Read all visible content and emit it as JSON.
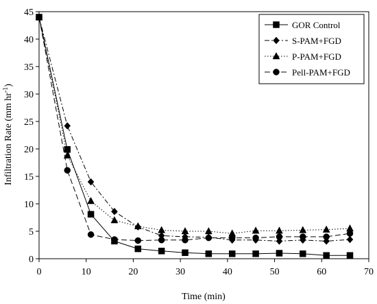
{
  "chart_data": {
    "type": "line",
    "title": "",
    "xlabel": "Time (min)",
    "ylabel_main": "Infiltration Rate (mm hr",
    "ylabel_sup": "-1",
    "ylabel_close": ")",
    "xlim": [
      0,
      70
    ],
    "ylim": [
      0,
      45
    ],
    "xticks": [
      0,
      10,
      20,
      30,
      40,
      50,
      60,
      70
    ],
    "yticks": [
      0,
      5,
      10,
      15,
      20,
      25,
      30,
      35,
      40,
      45
    ],
    "xtick_labels": [
      "0",
      "10",
      "20",
      "30",
      "40",
      "50",
      "60",
      "70"
    ],
    "ytick_labels": [
      "0",
      "5",
      "10",
      "15",
      "20",
      "25",
      "30",
      "35",
      "40",
      "45"
    ],
    "grid": false,
    "legend_position": "top-right",
    "series": [
      {
        "name": "GOR Control",
        "marker": "square",
        "dash": "solid",
        "x": [
          0,
          6,
          11,
          16,
          21,
          26,
          31,
          36,
          41,
          46,
          51,
          56,
          61,
          66
        ],
        "y": [
          44,
          19.9,
          8.1,
          3.2,
          1.8,
          1.4,
          1.1,
          0.9,
          0.9,
          0.9,
          1.0,
          0.9,
          0.6,
          0.6
        ]
      },
      {
        "name": "S-PAM+FGD",
        "marker": "diamond",
        "dash": "dashdot",
        "x": [
          0,
          6,
          11,
          16,
          21,
          26,
          31,
          36,
          41,
          46,
          51,
          56,
          61,
          66
        ],
        "y": [
          44,
          24.2,
          14.0,
          8.6,
          5.8,
          4.2,
          4.0,
          3.9,
          3.4,
          3.4,
          3.2,
          3.4,
          3.2,
          3.5
        ]
      },
      {
        "name": "P-PAM+FGD",
        "marker": "triangle",
        "dash": "dotted",
        "x": [
          0,
          6,
          11,
          16,
          21,
          26,
          31,
          36,
          41,
          46,
          51,
          56,
          61,
          66
        ],
        "y": [
          44,
          18.8,
          10.5,
          7.0,
          5.9,
          5.2,
          5.0,
          5.0,
          4.6,
          5.1,
          5.1,
          5.2,
          5.3,
          5.5
        ]
      },
      {
        "name": "Pell-PAM+FGD",
        "marker": "circle",
        "dash": "dashed",
        "x": [
          0,
          6,
          11,
          16,
          21,
          26,
          31,
          36,
          41,
          46,
          51,
          56,
          61,
          66
        ],
        "y": [
          44,
          16.1,
          4.4,
          3.5,
          3.3,
          3.4,
          3.4,
          3.8,
          3.8,
          3.8,
          4.0,
          4.0,
          4.0,
          4.6
        ]
      }
    ]
  }
}
